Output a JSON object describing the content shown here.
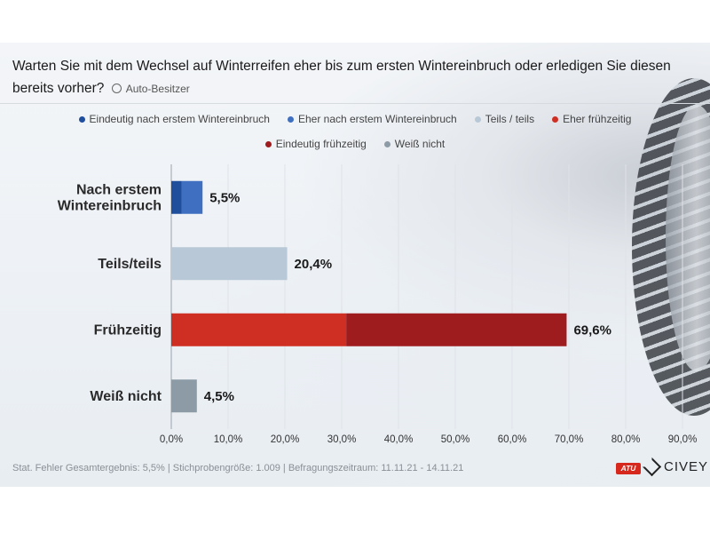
{
  "header": {
    "title": "Warten Sie mit dem Wechsel auf Winterreifen eher bis zum ersten Wintereinbruch oder erledigen Sie diesen bereits vorher?",
    "tag": "Auto-Besitzer"
  },
  "footer": {
    "text": "Stat. Fehler Gesamtergebnis: 5,5% | Stichprobengröße: 1.009 | Befragungszeitraum: 11.11.21 - 14.11.21"
  },
  "logos": {
    "atu": "ATU",
    "civey": "CIVEY"
  },
  "colors": {
    "eindeutig_nach": "#1f4e9c",
    "eher_nach": "#3e6fc0",
    "teils": "#b9c8d6",
    "eher_frueh": "#cf2e22",
    "eindeutig_frueh": "#9e1b1e",
    "weiss_nicht": "#8d9ba6"
  },
  "chart_data": {
    "type": "bar",
    "orientation": "horizontal",
    "stacked": true,
    "title": "Warten Sie mit dem Wechsel auf Winterreifen eher bis zum ersten Wintereinbruch oder erledigen Sie diesen bereits vorher?",
    "categories": [
      [
        "Nach erstem",
        "Wintereinbruch"
      ],
      [
        "Teils/teils"
      ],
      [
        "Frühzeitig"
      ],
      [
        "Weiß nicht"
      ]
    ],
    "legend": [
      "Eindeutig nach erstem Wintereinbruch",
      "Eher nach erstem Wintereinbruch",
      "Teils / teils",
      "Eher frühzeitig",
      "Eindeutig frühzeitig",
      "Weiß nicht"
    ],
    "series": [
      {
        "name": "Eindeutig nach erstem Wintereinbruch",
        "color": "#1f4e9c",
        "values": [
          1.8,
          0,
          0,
          0
        ]
      },
      {
        "name": "Eher nach erstem Wintereinbruch",
        "color": "#3e6fc0",
        "values": [
          3.7,
          0,
          0,
          0
        ]
      },
      {
        "name": "Teils / teils",
        "color": "#b9c8d6",
        "values": [
          0,
          20.4,
          0,
          0
        ]
      },
      {
        "name": "Eher frühzeitig",
        "color": "#cf2e22",
        "values": [
          0,
          0,
          30.8,
          0
        ]
      },
      {
        "name": "Eindeutig frühzeitig",
        "color": "#9e1b1e",
        "values": [
          0,
          0,
          38.8,
          0
        ]
      },
      {
        "name": "Weiß nicht",
        "color": "#8d9ba6",
        "values": [
          0,
          0,
          0,
          4.5
        ]
      }
    ],
    "totals": [
      "5,5%",
      "20,4%",
      "69,6%",
      "4,5%"
    ],
    "xlim": [
      0,
      90
    ],
    "xticks": [
      "0,0%",
      "10,0%",
      "20,0%",
      "30,0%",
      "40,0%",
      "50,0%",
      "60,0%",
      "70,0%",
      "80,0%",
      "90,0%"
    ],
    "grid": true
  }
}
